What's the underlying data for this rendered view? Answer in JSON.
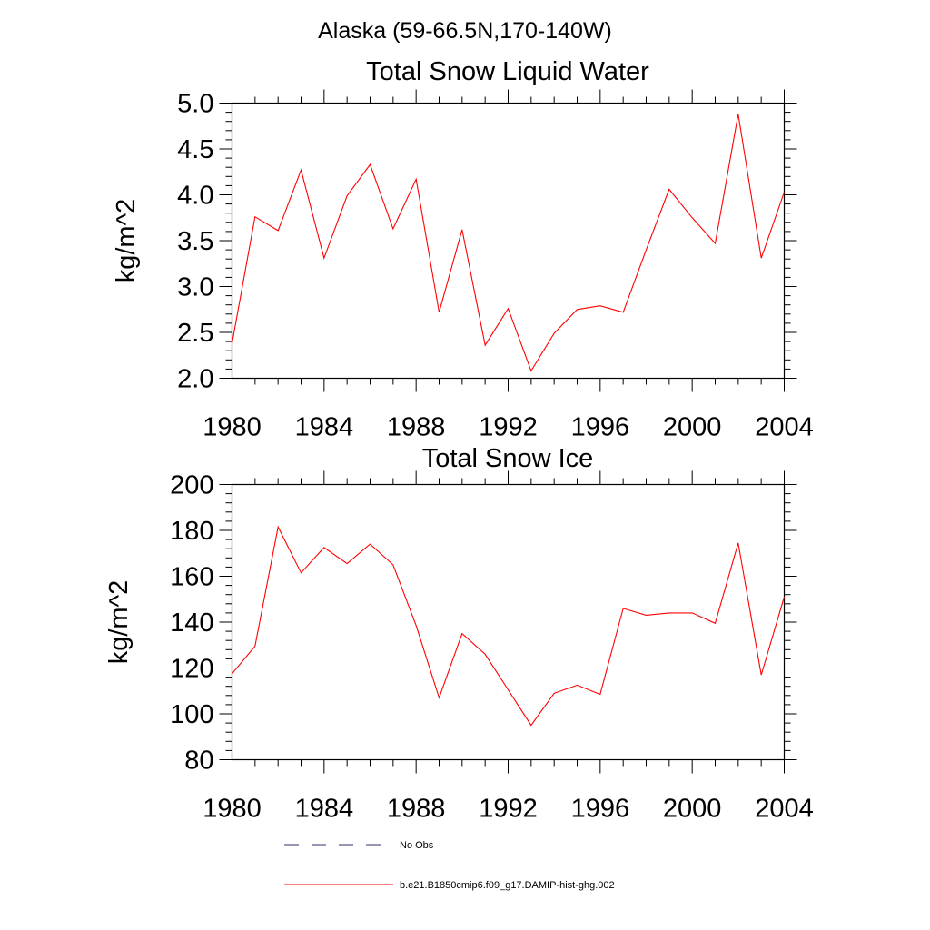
{
  "figure": {
    "suptitle": "Alaska (59-66.5N,170-140W)"
  },
  "colors": {
    "series": "#ff0000",
    "no_obs": "#2b2f6b",
    "axes": "#000000"
  },
  "legend": {
    "no_obs_label": "No Obs",
    "model_label": "b.e21.B1850cmip6.f09_g17.DAMIP-hist-ghg.002"
  },
  "chart_data": [
    {
      "type": "line",
      "title": "Total Snow Liquid Water",
      "xlabel": "",
      "ylabel": "kg/m^2",
      "xlim": [
        1980,
        2004
      ],
      "ylim": [
        2.0,
        5.0
      ],
      "xticks": [
        1980,
        1984,
        1988,
        1992,
        1996,
        2000,
        2004
      ],
      "yticks": [
        "2.0",
        "2.5",
        "3.0",
        "3.5",
        "4.0",
        "4.5",
        "5.0"
      ],
      "x": [
        1980,
        1981,
        1982,
        1983,
        1984,
        1985,
        1986,
        1987,
        1988,
        1989,
        1990,
        1991,
        1992,
        1993,
        1994,
        1995,
        1996,
        1997,
        1998,
        1999,
        2000,
        2001,
        2002,
        2003,
        2004
      ],
      "series": [
        {
          "name": "b.e21.B1850cmip6.f09_g17.DAMIP-hist-ghg.002",
          "values": [
            2.38,
            3.76,
            3.61,
            4.27,
            3.31,
            3.99,
            4.33,
            3.63,
            4.17,
            2.72,
            3.62,
            2.36,
            2.76,
            2.08,
            2.49,
            2.75,
            2.79,
            2.72,
            3.4,
            4.06,
            3.75,
            3.47,
            4.88,
            3.31,
            4.03
          ]
        }
      ]
    },
    {
      "type": "line",
      "title": "Total Snow Ice",
      "xlabel": "",
      "ylabel": "kg/m^2",
      "xlim": [
        1980,
        2004
      ],
      "ylim": [
        80,
        200
      ],
      "xticks": [
        1980,
        1984,
        1988,
        1992,
        1996,
        2000,
        2004
      ],
      "yticks": [
        "80",
        "100",
        "120",
        "140",
        "160",
        "180",
        "200"
      ],
      "x": [
        1980,
        1981,
        1982,
        1983,
        1984,
        1985,
        1986,
        1987,
        1988,
        1989,
        1990,
        1991,
        1992,
        1993,
        1994,
        1995,
        1996,
        1997,
        1998,
        1999,
        2000,
        2001,
        2002,
        2003,
        2004
      ],
      "series": [
        {
          "name": "b.e21.B1850cmip6.f09_g17.DAMIP-hist-ghg.002",
          "values": [
            117.5,
            129.5,
            181.5,
            161.5,
            172.5,
            165.5,
            174,
            165,
            138.5,
            107,
            135,
            126,
            110.5,
            95,
            109,
            112.5,
            108.5,
            146,
            143,
            144,
            144,
            139.5,
            174.5,
            117,
            151
          ]
        }
      ]
    }
  ]
}
